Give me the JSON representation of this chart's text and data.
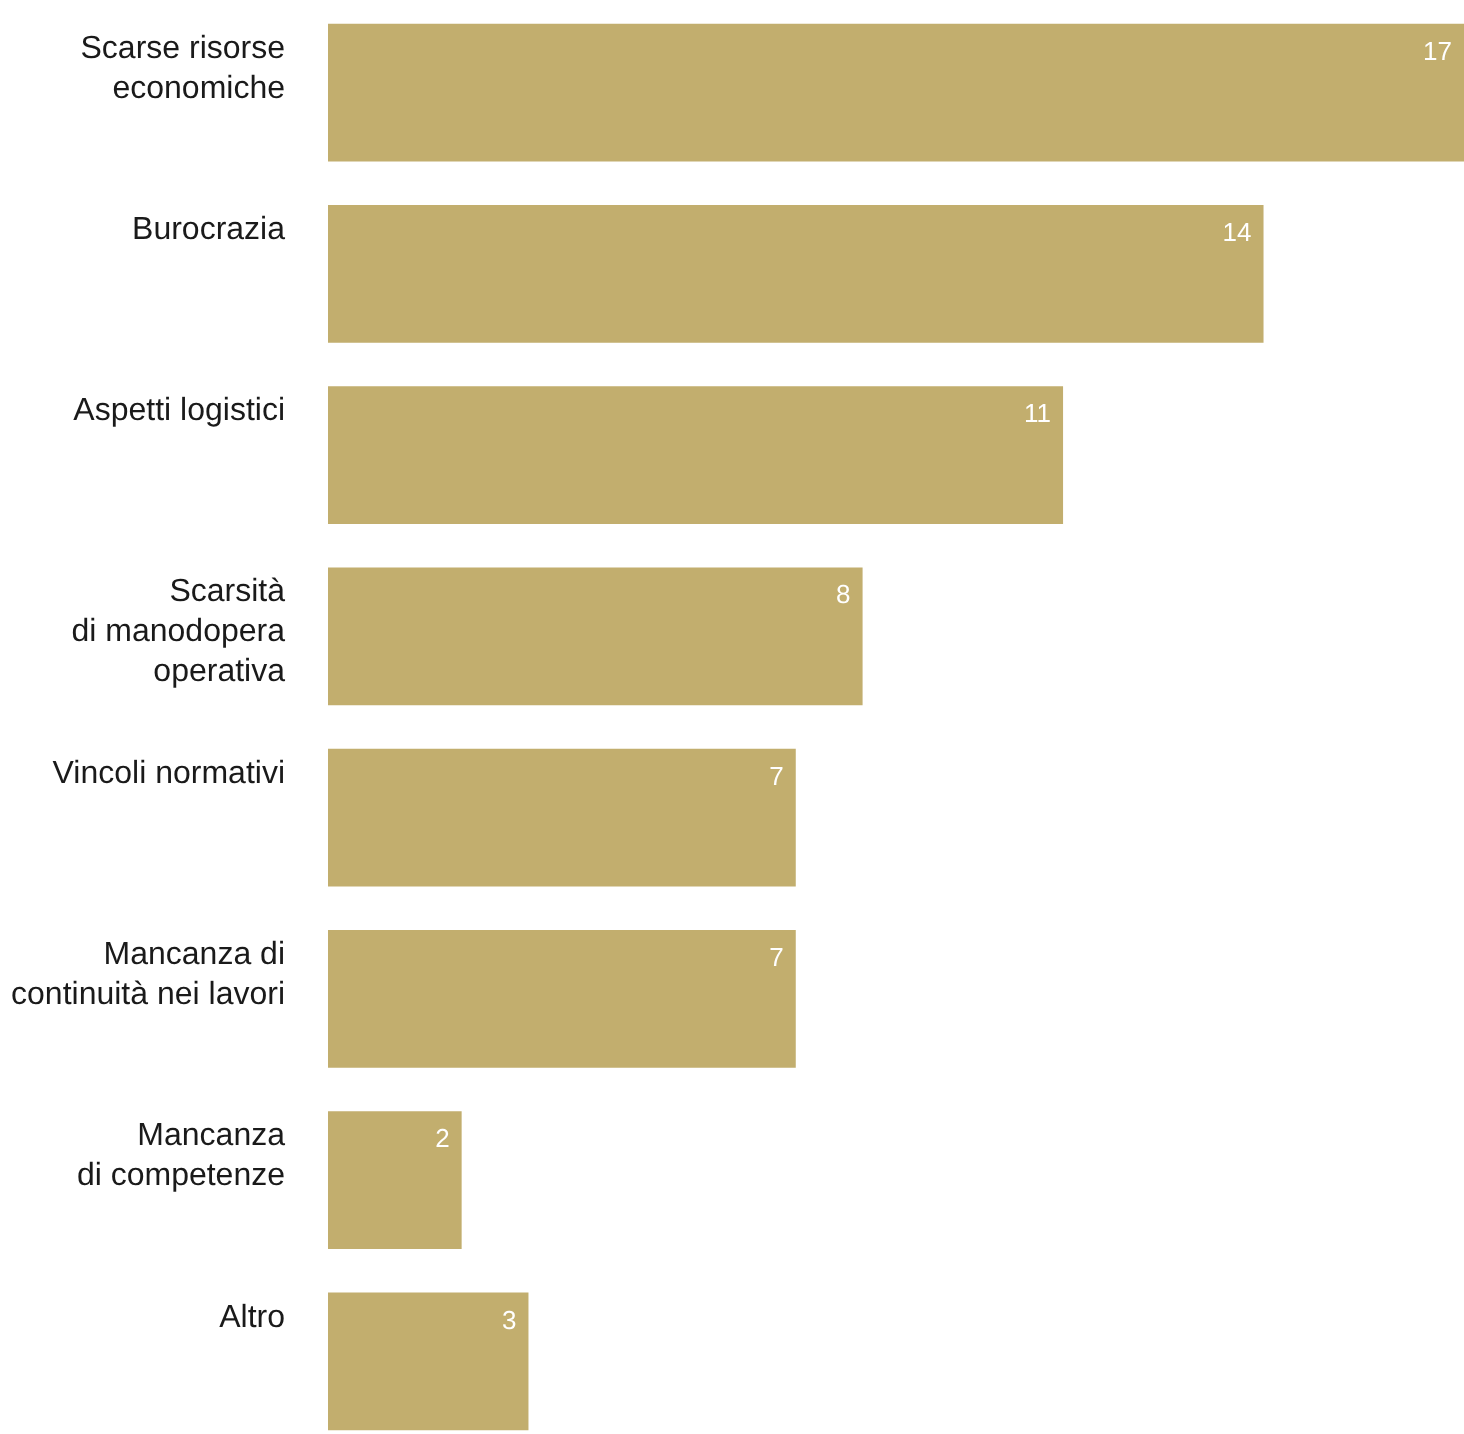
{
  "chart_data": {
    "type": "bar",
    "orientation": "horizontal",
    "data_labels": true,
    "color": "#c2ae6e",
    "categories": [
      "Scarse risorse\neconomiche",
      "Burocrazia",
      "Aspetti logistici",
      "Scarsità\ndi manodopera\noperativa",
      "Vincoli normativi",
      "Mancanza di\ncontinuità nei lavori",
      "Mancanza\ndi competenze",
      "Altro"
    ],
    "values": [
      17,
      14,
      11,
      8,
      7,
      7,
      2,
      3
    ]
  }
}
